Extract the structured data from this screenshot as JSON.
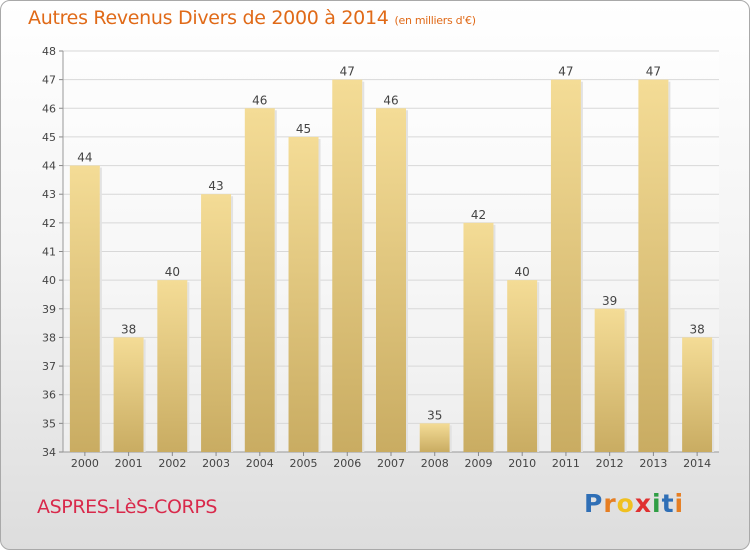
{
  "header": {
    "title": "Autres Revenus Divers de 2000 à 2014",
    "unit": "(en milliers d'€)"
  },
  "footer": {
    "town": "ASPRES-LèS-CORPS",
    "brand": "Proxiti",
    "brand_letters": [
      {
        "char": "P",
        "color": "#2f6fb6"
      },
      {
        "char": "r",
        "color": "#e67e22"
      },
      {
        "char": "o",
        "color": "#f0c020"
      },
      {
        "char": "x",
        "color": "#e03030"
      },
      {
        "char": "i",
        "color": "#2f9e44"
      },
      {
        "char": "t",
        "color": "#2f6fb6"
      },
      {
        "char": "i",
        "color": "#e67e22"
      }
    ]
  },
  "colors": {
    "title": "#e06a18",
    "town": "#d9294b",
    "bar_light": "#f4dc96",
    "bar_dark": "#c9ac62"
  },
  "chart_data": {
    "type": "bar",
    "categories": [
      "2000",
      "2001",
      "2002",
      "2003",
      "2004",
      "2005",
      "2006",
      "2007",
      "2008",
      "2009",
      "2010",
      "2011",
      "2012",
      "2013",
      "2014"
    ],
    "values": [
      44,
      38,
      40,
      43,
      46,
      45,
      47,
      46,
      35,
      42,
      40,
      47,
      39,
      47,
      38
    ],
    "ylim": [
      34,
      48
    ],
    "yticks": [
      34,
      35,
      36,
      37,
      38,
      39,
      40,
      41,
      42,
      43,
      44,
      45,
      46,
      47,
      48
    ],
    "grid": true,
    "data_labels": true
  }
}
